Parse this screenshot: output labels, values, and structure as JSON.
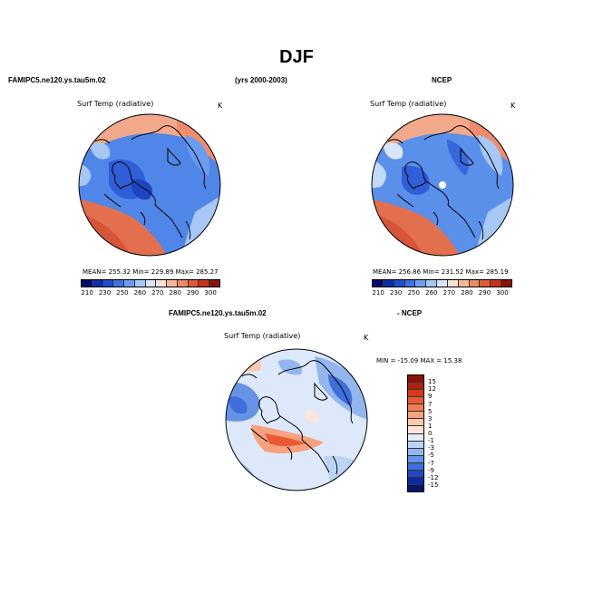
{
  "page": {
    "title": "DJF",
    "model_label": "FAMIPC5.ne120.ys.tau5m.02",
    "years_label": "(yrs 2000-2003)",
    "obs_label": "NCEP",
    "diff_model_label": "FAMIPC5.ne120.ys.tau5m.02",
    "diff_obs_label": "- NCEP"
  },
  "chart_data": [
    {
      "type": "heatmap",
      "projection": "north polar stereographic",
      "title": "Surf Temp (radiative)",
      "units": "K",
      "stats": {
        "mean": "255.32",
        "min": "229.89",
        "max": "285.27"
      },
      "stats_text": "MEAN= 255.32   Min= 229.89   Max= 285.27",
      "colorbar": {
        "ticks": [
          "210",
          "230",
          "250",
          "260",
          "270",
          "280",
          "290",
          "300"
        ],
        "colors": [
          "#08086b",
          "#0c2ea8",
          "#1f4fd0",
          "#3a72e6",
          "#6b9df0",
          "#a6c6f6",
          "#d9e6fa",
          "#fbe2d5",
          "#f7b89a",
          "#ee8a65",
          "#e05a3a",
          "#c8321e",
          "#8a1208"
        ]
      }
    },
    {
      "type": "heatmap",
      "projection": "north polar stereographic",
      "title": "Surf Temp (radiative)",
      "units": "K",
      "stats": {
        "mean": "256.86",
        "min": "231.52",
        "max": "285.19"
      },
      "stats_text": "MEAN= 256.86   Min= 231.52   Max= 285.19",
      "colorbar": {
        "ticks": [
          "210",
          "230",
          "250",
          "260",
          "270",
          "280",
          "290",
          "300"
        ],
        "colors": [
          "#08086b",
          "#0c2ea8",
          "#1f4fd0",
          "#3a72e6",
          "#6b9df0",
          "#a6c6f6",
          "#d9e6fa",
          "#fbe2d5",
          "#f7b89a",
          "#ee8a65",
          "#e05a3a",
          "#c8321e",
          "#8a1208"
        ]
      }
    },
    {
      "type": "heatmap",
      "projection": "north polar stereographic",
      "title": "Surf Temp (radiative)",
      "units": "K",
      "stats": {
        "min": "-15.09",
        "max": "15.38"
      },
      "stats_text": "MIN = -15.09  MAX =  15.38",
      "colorbar": {
        "orientation": "vertical",
        "ticks": [
          "15",
          "12",
          "9",
          "7",
          "5",
          "3",
          "1",
          "0",
          "-1",
          "-3",
          "-5",
          "-7",
          "-9",
          "-12",
          "-15"
        ],
        "colors": [
          "#8a1208",
          "#b0200e",
          "#d63a1c",
          "#e85a35",
          "#f07d55",
          "#f6a27f",
          "#fbc8ae",
          "#fde5d8",
          "#e3eefa",
          "#bcd3f4",
          "#93b6ee",
          "#6693e6",
          "#3e6fdb",
          "#1f47c6",
          "#0c2a9e",
          "#07146e"
        ]
      }
    }
  ]
}
